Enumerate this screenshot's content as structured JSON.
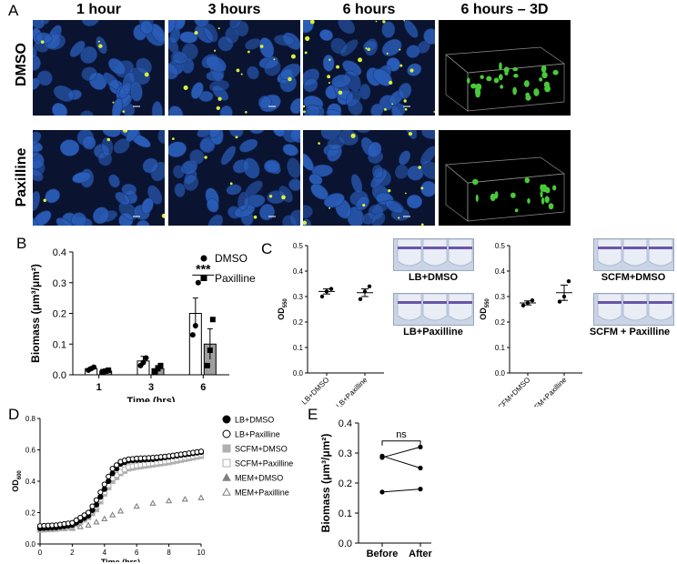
{
  "panel_letters": {
    "a": "A",
    "b": "B",
    "c": "C",
    "d": "D",
    "e": "E"
  },
  "panel_a": {
    "columns": [
      "1 hour",
      "3 hours",
      "6 hours",
      "6 hours – 3D"
    ],
    "rows": [
      "DMSO",
      "Paxilline"
    ]
  },
  "panel_c": {
    "well_labels": [
      "LB+DMSO",
      "LB+Paxilline",
      "SCFM+DMSO",
      "SCFM + Paxilline"
    ]
  },
  "colors": {
    "nuclei": "#2a5db8",
    "bacteria": "#d8f03a",
    "bar_grey": "#9e9e9e"
  },
  "chart_data": [
    {
      "type": "bar",
      "panel": "B",
      "categories": [
        "1",
        "3",
        "6"
      ],
      "series": [
        {
          "name": "DMSO",
          "values": [
            0.02,
            0.045,
            0.2
          ],
          "errors": [
            0.005,
            0.015,
            0.05
          ],
          "points": [
            [
              0.015,
              0.02,
              0.025
            ],
            [
              0.03,
              0.04,
              0.055
            ],
            [
              0.13,
              0.16,
              0.3
            ]
          ]
        },
        {
          "name": "Paxilline",
          "values": [
            0.012,
            0.02,
            0.1
          ],
          "errors": [
            0.004,
            0.01,
            0.05
          ],
          "points": [
            [
              0.01,
              0.012,
              0.015
            ],
            [
              0.01,
              0.02,
              0.03
            ],
            [
              0.03,
              0.08,
              0.18
            ]
          ]
        }
      ],
      "xlabel": "Time (hrs)",
      "ylabel": "Biomass (μm³/μm²)",
      "ylim": [
        0,
        0.4
      ],
      "yticks": [
        "0.0",
        "0.1",
        "0.2",
        "0.3",
        "0.4"
      ],
      "annotation": "***",
      "legend": "top-right"
    },
    {
      "type": "scatter",
      "panel": "C-left",
      "categories": [
        "LB+DMSO",
        "LB+Paxilline"
      ],
      "points": [
        [
          0.3,
          0.32,
          0.33
        ],
        [
          0.29,
          0.32,
          0.34
        ]
      ],
      "means": [
        0.32,
        0.315
      ],
      "errors": [
        0.01,
        0.015
      ],
      "ylabel": "OD550",
      "ylabel_main": "OD",
      "ylabel_sub": "550",
      "ylim": [
        0,
        0.5
      ],
      "yticks": [
        "0.0",
        "0.1",
        "0.2",
        "0.3",
        "0.4",
        "0.5"
      ]
    },
    {
      "type": "scatter",
      "panel": "C-right",
      "categories": [
        "SCFM+DMSO",
        "SCFM+Paxilline"
      ],
      "points": [
        [
          0.265,
          0.275,
          0.285
        ],
        [
          0.28,
          0.3,
          0.36
        ]
      ],
      "means": [
        0.275,
        0.315
      ],
      "errors": [
        0.008,
        0.03
      ],
      "ylabel": "OD550",
      "ylabel_main": "OD",
      "ylabel_sub": "550",
      "ylim": [
        0,
        0.5
      ],
      "yticks": [
        "0.0",
        "0.1",
        "0.2",
        "0.3",
        "0.4",
        "0.5"
      ]
    },
    {
      "type": "line",
      "panel": "D",
      "xlabel": "Time (hrs)",
      "ylabel": "OD600",
      "ylabel_main": "OD",
      "ylabel_sub": "600",
      "xlim": [
        0,
        10
      ],
      "ylim": [
        0,
        0.8
      ],
      "xticks": [
        "0",
        "2",
        "4",
        "6",
        "8",
        "10"
      ],
      "yticks": [
        "0.0",
        "0.2",
        "0.4",
        "0.6",
        "0.8"
      ],
      "series": [
        {
          "name": "LB+DMSO",
          "marker": "filled-circle",
          "color": "#000000",
          "knots": [
            [
              0,
              0.1
            ],
            [
              1,
              0.105
            ],
            [
              2,
              0.12
            ],
            [
              3,
              0.18
            ],
            [
              3.5,
              0.25
            ],
            [
              4,
              0.35
            ],
            [
              4.5,
              0.45
            ],
            [
              5,
              0.51
            ],
            [
              5.5,
              0.53
            ],
            [
              6,
              0.535
            ],
            [
              7,
              0.54
            ],
            [
              8,
              0.555
            ],
            [
              9,
              0.57
            ],
            [
              10,
              0.585
            ]
          ]
        },
        {
          "name": "LB+Paxilline",
          "marker": "open-circle",
          "color": "#000000",
          "knots": [
            [
              0,
              0.115
            ],
            [
              1,
              0.12
            ],
            [
              2,
              0.135
            ],
            [
              3,
              0.2
            ],
            [
              3.5,
              0.28
            ],
            [
              4,
              0.38
            ],
            [
              4.5,
              0.48
            ],
            [
              5,
              0.525
            ],
            [
              5.5,
              0.54
            ],
            [
              6,
              0.545
            ],
            [
              7,
              0.55
            ],
            [
              8,
              0.56
            ],
            [
              9,
              0.575
            ],
            [
              10,
              0.59
            ]
          ]
        },
        {
          "name": "SCFM+DMSO",
          "marker": "filled-square",
          "color": "#b0b0b0",
          "knots": [
            [
              0,
              0.09
            ],
            [
              1,
              0.095
            ],
            [
              2,
              0.11
            ],
            [
              3,
              0.17
            ],
            [
              3.5,
              0.22
            ],
            [
              4,
              0.32
            ],
            [
              4.5,
              0.4
            ],
            [
              5,
              0.45
            ],
            [
              5.5,
              0.48
            ],
            [
              6,
              0.49
            ],
            [
              7,
              0.505
            ],
            [
              8,
              0.52
            ],
            [
              9,
              0.54
            ],
            [
              10,
              0.56
            ]
          ]
        },
        {
          "name": "SCFM+Paxilline",
          "marker": "open-square",
          "color": "#b0b0b0",
          "knots": [
            [
              0,
              0.1
            ],
            [
              1,
              0.1
            ],
            [
              2,
              0.115
            ],
            [
              3,
              0.18
            ],
            [
              3.5,
              0.24
            ],
            [
              4,
              0.33
            ],
            [
              4.5,
              0.42
            ],
            [
              5,
              0.46
            ],
            [
              5.5,
              0.49
            ],
            [
              6,
              0.5
            ],
            [
              7,
              0.515
            ],
            [
              8,
              0.53
            ],
            [
              9,
              0.55
            ],
            [
              10,
              0.57
            ]
          ]
        },
        {
          "name": "MEM+DMSO",
          "marker": "filled-triangle",
          "color": "#808080",
          "knots": [
            [
              0,
              0.09
            ],
            [
              1,
              0.095
            ],
            [
              2,
              0.1
            ],
            [
              3,
              0.12
            ],
            [
              4,
              0.16
            ],
            [
              5,
              0.21
            ],
            [
              6,
              0.24
            ],
            [
              7,
              0.26
            ],
            [
              8,
              0.275
            ],
            [
              9,
              0.285
            ],
            [
              10,
              0.295
            ]
          ]
        },
        {
          "name": "MEM+Paxilline",
          "marker": "open-triangle",
          "color": "#808080",
          "knots": [
            [
              0,
              0.09
            ],
            [
              1,
              0.095
            ],
            [
              2,
              0.1
            ],
            [
              3,
              0.12
            ],
            [
              4,
              0.16
            ],
            [
              5,
              0.21
            ],
            [
              6,
              0.24
            ],
            [
              7,
              0.26
            ],
            [
              8,
              0.275
            ],
            [
              9,
              0.285
            ],
            [
              10,
              0.295
            ]
          ]
        }
      ],
      "legend": "right"
    },
    {
      "type": "line",
      "panel": "E",
      "categories": [
        "Before",
        "After"
      ],
      "pairs": [
        [
          0.29,
          0.25
        ],
        [
          0.285,
          0.32
        ],
        [
          0.17,
          0.18
        ]
      ],
      "ylabel": "Biomass (μm³/μm²)",
      "ylim": [
        0,
        0.4
      ],
      "yticks": [
        "0.0",
        "0.1",
        "0.2",
        "0.3",
        "0.4"
      ],
      "annotation": "ns"
    }
  ]
}
